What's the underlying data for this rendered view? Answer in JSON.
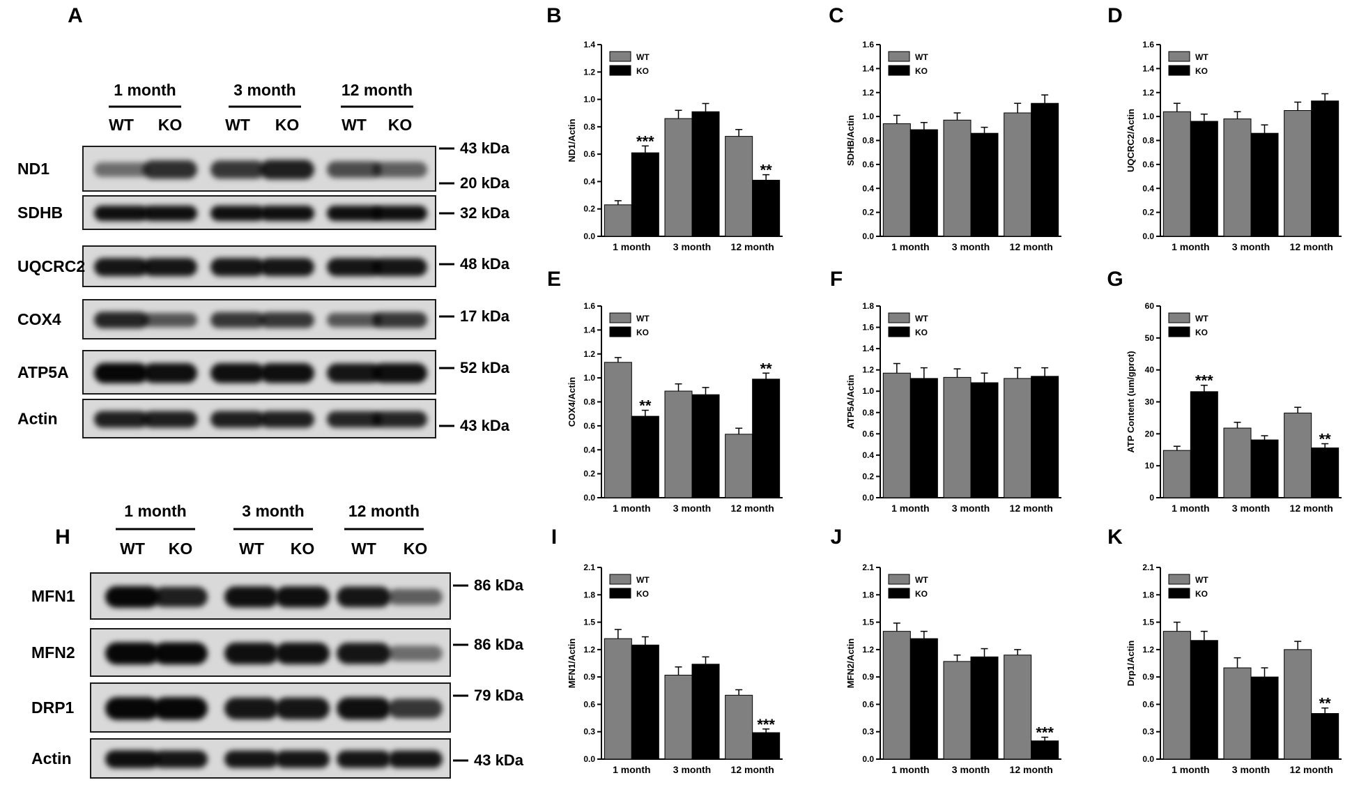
{
  "panel_letters": [
    "A",
    "B",
    "C",
    "D",
    "E",
    "F",
    "G",
    "H",
    "I",
    "J",
    "K"
  ],
  "blots": [
    {
      "id": "A",
      "groups": [
        "1 month",
        "3 month",
        "12 month"
      ],
      "lanes": [
        "WT",
        "KO",
        "WT",
        "KO",
        "WT",
        "KO"
      ],
      "rows": [
        {
          "protein": "ND1",
          "markers": [
            "43 kDa",
            "20 kDa"
          ],
          "intensity": [
            0.35,
            0.75,
            0.7,
            0.85,
            0.55,
            0.45
          ]
        },
        {
          "protein": "SDHB",
          "markers": [
            "32 kDa"
          ],
          "intensity": [
            0.95,
            0.95,
            0.95,
            0.95,
            0.95,
            0.95
          ]
        },
        {
          "protein": "UQCRC2",
          "markers": [
            "48 kDa"
          ],
          "intensity": [
            0.9,
            0.9,
            0.9,
            0.9,
            0.9,
            0.9
          ]
        },
        {
          "protein": "COX4",
          "markers": [
            "17 kDa"
          ],
          "intensity": [
            0.8,
            0.5,
            0.7,
            0.7,
            0.5,
            0.7
          ]
        },
        {
          "protein": "ATP5A",
          "markers": [
            "52 kDa"
          ],
          "intensity": [
            1.0,
            0.95,
            0.95,
            0.95,
            0.9,
            0.95
          ]
        },
        {
          "protein": "Actin",
          "markers": [
            "43 kDa"
          ],
          "intensity": [
            0.85,
            0.85,
            0.85,
            0.85,
            0.8,
            0.8
          ]
        }
      ]
    },
    {
      "id": "H",
      "groups": [
        "1 month",
        "3 month",
        "12 month"
      ],
      "lanes": [
        "WT",
        "KO",
        "WT",
        "KO",
        "WT",
        "KO"
      ],
      "rows": [
        {
          "protein": "MFN1",
          "markers": [
            "86 kDa"
          ],
          "intensity": [
            1.0,
            0.85,
            0.95,
            0.95,
            0.9,
            0.45
          ]
        },
        {
          "protein": "MFN2",
          "markers": [
            "86 kDa"
          ],
          "intensity": [
            1.0,
            1.0,
            0.95,
            0.95,
            0.9,
            0.35
          ]
        },
        {
          "protein": "DRP1",
          "markers": [
            "79 kDa"
          ],
          "intensity": [
            1.0,
            1.0,
            0.9,
            0.9,
            0.95,
            0.7
          ]
        },
        {
          "protein": "Actin",
          "markers": [
            "43 kDa"
          ],
          "intensity": [
            0.95,
            0.9,
            0.9,
            0.9,
            0.9,
            0.9
          ]
        }
      ]
    }
  ],
  "legend_labels": [
    "WT",
    "KO"
  ],
  "colors": {
    "wt": "#808080",
    "ko": "#000000",
    "axis": "#000000"
  },
  "chart_data": [
    {
      "id": "B",
      "type": "bar",
      "categories": [
        "1 month",
        "3 month",
        "12 month"
      ],
      "ylabel": "ND1/Actin",
      "ylim": [
        0,
        1.4
      ],
      "yticks": [
        "0.0",
        "0.2",
        "0.4",
        "0.6",
        "0.8",
        "1.0",
        "1.2",
        "1.4"
      ],
      "series": [
        {
          "name": "WT",
          "values": [
            0.23,
            0.86,
            0.73
          ],
          "errors": [
            0.03,
            0.06,
            0.05
          ]
        },
        {
          "name": "KO",
          "values": [
            0.61,
            0.91,
            0.41
          ],
          "errors": [
            0.05,
            0.06,
            0.04
          ]
        }
      ],
      "annotations": [
        {
          "category": 0,
          "series": "KO",
          "text": "***"
        },
        {
          "category": 2,
          "series": "KO",
          "text": "**"
        }
      ]
    },
    {
      "id": "C",
      "type": "bar",
      "categories": [
        "1 month",
        "3 month",
        "12 month"
      ],
      "ylabel": "SDHB/Actin",
      "ylim": [
        0,
        1.6
      ],
      "yticks": [
        "0.0",
        "0.2",
        "0.4",
        "0.6",
        "0.8",
        "1.0",
        "1.2",
        "1.4",
        "1.6"
      ],
      "series": [
        {
          "name": "WT",
          "values": [
            0.94,
            0.97,
            1.03
          ],
          "errors": [
            0.07,
            0.06,
            0.08
          ]
        },
        {
          "name": "KO",
          "values": [
            0.89,
            0.86,
            1.11
          ],
          "errors": [
            0.06,
            0.05,
            0.07
          ]
        }
      ],
      "annotations": []
    },
    {
      "id": "D",
      "type": "bar",
      "categories": [
        "1 month",
        "3 month",
        "12 month"
      ],
      "ylabel": "UQCRC2/Actin",
      "ylim": [
        0,
        1.6
      ],
      "yticks": [
        "0.0",
        "0.2",
        "0.4",
        "0.6",
        "0.8",
        "1.0",
        "1.2",
        "1.4",
        "1.6"
      ],
      "series": [
        {
          "name": "WT",
          "values": [
            1.04,
            0.98,
            1.05
          ],
          "errors": [
            0.07,
            0.06,
            0.07
          ]
        },
        {
          "name": "KO",
          "values": [
            0.96,
            0.86,
            1.13
          ],
          "errors": [
            0.06,
            0.07,
            0.06
          ]
        }
      ],
      "annotations": []
    },
    {
      "id": "E",
      "type": "bar",
      "categories": [
        "1 month",
        "3 month",
        "12 month"
      ],
      "ylabel": "COX4/Actin",
      "ylim": [
        0,
        1.6
      ],
      "yticks": [
        "0.0",
        "0.2",
        "0.4",
        "0.6",
        "0.8",
        "1.0",
        "1.2",
        "1.4",
        "1.6"
      ],
      "series": [
        {
          "name": "WT",
          "values": [
            1.13,
            0.89,
            0.53
          ],
          "errors": [
            0.04,
            0.06,
            0.05
          ]
        },
        {
          "name": "KO",
          "values": [
            0.68,
            0.86,
            0.99
          ],
          "errors": [
            0.05,
            0.06,
            0.05
          ]
        }
      ],
      "annotations": [
        {
          "category": 0,
          "series": "KO",
          "text": "**"
        },
        {
          "category": 2,
          "series": "KO",
          "text": "**"
        }
      ]
    },
    {
      "id": "F",
      "type": "bar",
      "categories": [
        "1 month",
        "3 month",
        "12 month"
      ],
      "ylabel": "ATP5A/Actin",
      "ylim": [
        0,
        1.8
      ],
      "yticks": [
        "0.0",
        "0.2",
        "0.4",
        "0.6",
        "0.8",
        "1.0",
        "1.2",
        "1.4",
        "1.6",
        "1.8"
      ],
      "series": [
        {
          "name": "WT",
          "values": [
            1.17,
            1.13,
            1.12
          ],
          "errors": [
            0.09,
            0.08,
            0.1
          ]
        },
        {
          "name": "KO",
          "values": [
            1.12,
            1.08,
            1.14
          ],
          "errors": [
            0.1,
            0.09,
            0.08
          ]
        }
      ],
      "annotations": []
    },
    {
      "id": "G",
      "type": "bar",
      "categories": [
        "1 month",
        "3 month",
        "12 month"
      ],
      "ylabel": "ATP Content (um/gprot)",
      "ylim": [
        0,
        60
      ],
      "yticks": [
        "0",
        "10",
        "20",
        "30",
        "40",
        "50",
        "60"
      ],
      "series": [
        {
          "name": "WT",
          "values": [
            14.8,
            21.8,
            26.5
          ],
          "errors": [
            1.3,
            1.8,
            1.8
          ]
        },
        {
          "name": "KO",
          "values": [
            33.2,
            18.1,
            15.6
          ],
          "errors": [
            2.0,
            1.3,
            1.3
          ]
        }
      ],
      "annotations": [
        {
          "category": 0,
          "series": "KO",
          "text": "***"
        },
        {
          "category": 2,
          "series": "KO",
          "text": "**"
        }
      ]
    },
    {
      "id": "I",
      "type": "bar",
      "categories": [
        "1 month",
        "3 month",
        "12 month"
      ],
      "ylabel": "MFN1/Actin",
      "ylim": [
        0,
        2.1
      ],
      "yticks": [
        "0.0",
        "0.3",
        "0.6",
        "0.9",
        "1.2",
        "1.5",
        "1.8",
        "2.1"
      ],
      "series": [
        {
          "name": "WT",
          "values": [
            1.32,
            0.92,
            0.7
          ],
          "errors": [
            0.1,
            0.09,
            0.06
          ]
        },
        {
          "name": "KO",
          "values": [
            1.25,
            1.04,
            0.29
          ],
          "errors": [
            0.09,
            0.08,
            0.04
          ]
        }
      ],
      "annotations": [
        {
          "category": 2,
          "series": "KO",
          "text": "***"
        }
      ]
    },
    {
      "id": "J",
      "type": "bar",
      "categories": [
        "1 month",
        "3 month",
        "12 month"
      ],
      "ylabel": "MFN2/Actin",
      "ylim": [
        0,
        2.1
      ],
      "yticks": [
        "0.0",
        "0.3",
        "0.6",
        "0.9",
        "1.2",
        "1.5",
        "1.8",
        "2.1"
      ],
      "series": [
        {
          "name": "WT",
          "values": [
            1.4,
            1.07,
            1.14
          ],
          "errors": [
            0.09,
            0.07,
            0.06
          ]
        },
        {
          "name": "KO",
          "values": [
            1.32,
            1.12,
            0.2
          ],
          "errors": [
            0.08,
            0.09,
            0.04
          ]
        }
      ],
      "annotations": [
        {
          "category": 2,
          "series": "KO",
          "text": "***"
        }
      ]
    },
    {
      "id": "K",
      "type": "bar",
      "categories": [
        "1 month",
        "3 month",
        "12 month"
      ],
      "ylabel": "Drp1/Actin",
      "ylim": [
        0,
        2.1
      ],
      "yticks": [
        "0.0",
        "0.3",
        "0.6",
        "0.9",
        "1.2",
        "1.5",
        "1.8",
        "2.1"
      ],
      "series": [
        {
          "name": "WT",
          "values": [
            1.4,
            1.0,
            1.2
          ],
          "errors": [
            0.1,
            0.11,
            0.09
          ]
        },
        {
          "name": "KO",
          "values": [
            1.3,
            0.9,
            0.5
          ],
          "errors": [
            0.1,
            0.1,
            0.06
          ]
        }
      ],
      "annotations": [
        {
          "category": 2,
          "series": "KO",
          "text": "**"
        }
      ]
    }
  ]
}
